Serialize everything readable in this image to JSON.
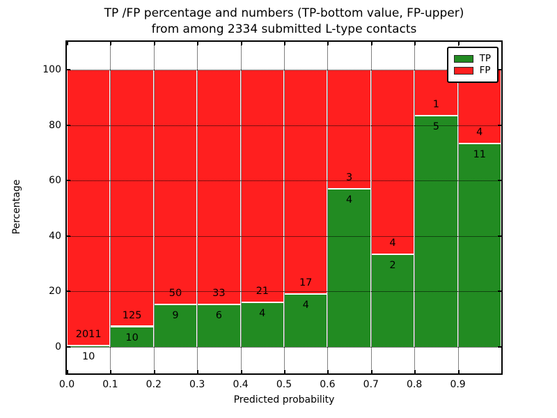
{
  "title": {
    "line1": "TP /FP percentage and numbers (TP-bottom value, FP-upper)",
    "line2": "from among 2334 submitted L-type contacts"
  },
  "axes": {
    "xlabel": "Predicted probability",
    "ylabel": "Percentage",
    "xtick_labels": [
      "0.0",
      "0.1",
      "0.2",
      "0.3",
      "0.4",
      "0.5",
      "0.6",
      "0.7",
      "0.8",
      "0.9"
    ],
    "ytick_values": [
      0,
      20,
      40,
      60,
      80,
      100
    ],
    "xlim": [
      0.0,
      1.0
    ],
    "ylim": [
      -9.55,
      110.05
    ],
    "grid": "dotted"
  },
  "legend": {
    "entries": [
      {
        "label": "TP",
        "color": "#228b22"
      },
      {
        "label": "FP",
        "color": "#ff1f1f"
      }
    ],
    "position": "upper right"
  },
  "colors": {
    "tp": "#228b22",
    "fp": "#ff1f1f",
    "grid": "#000000",
    "bar_edge": "#ffffff"
  },
  "chart_data": {
    "type": "bar",
    "stacked": true,
    "normalized_to_percent": true,
    "title": "TP /FP percentage and numbers (TP-bottom value, FP-upper) from among 2334 submitted L-type contacts",
    "xlabel": "Predicted probability",
    "ylabel": "Percentage",
    "total_contacts": 2334,
    "bin_edges": [
      0.0,
      0.1,
      0.2,
      0.3,
      0.4,
      0.5,
      0.6,
      0.7,
      0.8,
      0.9,
      1.0
    ],
    "categories": [
      "0.0-0.1",
      "0.1-0.2",
      "0.2-0.3",
      "0.3-0.4",
      "0.4-0.5",
      "0.5-0.6",
      "0.6-0.7",
      "0.7-0.8",
      "0.8-0.9",
      "0.9-1.0"
    ],
    "series": [
      {
        "name": "TP",
        "color": "#228b22",
        "counts": [
          10,
          10,
          9,
          6,
          4,
          4,
          4,
          2,
          5,
          11
        ],
        "percent": [
          0.49,
          7.41,
          15.25,
          15.38,
          16.0,
          19.05,
          57.14,
          33.33,
          83.33,
          73.33
        ]
      },
      {
        "name": "FP",
        "color": "#ff1f1f",
        "counts": [
          2011,
          125,
          50,
          33,
          21,
          17,
          3,
          4,
          1,
          4
        ],
        "percent": [
          99.51,
          92.59,
          84.75,
          84.62,
          84.0,
          80.95,
          42.86,
          66.67,
          16.67,
          26.67
        ]
      }
    ],
    "ylim": [
      -9.55,
      110.05
    ],
    "xlim": [
      0.0,
      1.0
    ],
    "annotation_rule": "FP count above TP/FP boundary, TP count below boundary"
  }
}
